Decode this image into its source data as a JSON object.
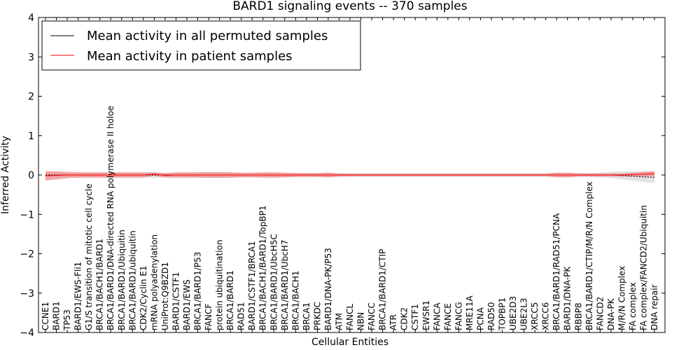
{
  "chart_data": {
    "type": "line",
    "title": "BARD1 signaling events -- 370 samples",
    "xlabel": "Cellular Entities",
    "ylabel": "Inferred Activity",
    "ylim": [
      -4,
      4
    ],
    "yticks": [
      "−4",
      "−3",
      "−2",
      "−1",
      "0",
      "1",
      "2",
      "3",
      "4"
    ],
    "grid": false,
    "legend_position": "top-left",
    "categories": [
      "CCNE1",
      "BARD1",
      "TP53",
      "BARD1/EWS-Fli1",
      "G1/S transition of mitotic cell cycle",
      "BRCA1/BACH1/BARD1",
      "BRCA1/BARD1/DNA-directed RNA polymerase II holoe",
      "BRCA1/BARD1/Ubiquitin",
      "BRCA1/BARD1/ubiquitin",
      "CDK2/Cyclin E1",
      "mRNA polyadenylation",
      "UniProt:Q9BZD1",
      "BARD1/CSTF1",
      "BARD1/EWS",
      "BRCA1/BARD1/P53",
      "FANCF",
      "protein ubiquitination",
      "BRCA1/BARD1",
      "RAD51",
      "BARD1/CSTF1/BRCA1",
      "BRCA1/BACH1/BARD1/TopBP1",
      "BRCA1/BARD1/UbcH5C",
      "BRCA1/BARD1/UbcH7",
      "BRCA1/BACH1",
      "BRCA1",
      "PRKDC",
      "BARD1/DNA-PK/P53",
      "ATM",
      "FANCL",
      "NBN",
      "FANCC",
      "BRCA1/BARD1/CTIP",
      "ATR",
      "CDK2",
      "CSTF1",
      "EWSR1",
      "FANCA",
      "FANCE",
      "FANCG",
      "MRE11A",
      "PCNA",
      "RAD50",
      "TOPBP1",
      "UBE2D3",
      "UBE2L3",
      "XRCC5",
      "XRCC6",
      "BRCA1/BARD1/RAD51/PCNA",
      "BARD1/DNA-PK",
      "RBBP8",
      "BRCA1/BARD1/CTIP/M/R/N Complex",
      "FANCD2",
      "DNA-PK",
      "M/R/N Complex",
      "FA complex",
      "FA complex/FANCD2/Ubiquitin",
      "DNA repair"
    ],
    "series": [
      {
        "name": "Mean activity in all permuted samples",
        "color": "#000000",
        "band_color": "#d9d9d9",
        "values": [
          0,
          0,
          0,
          0,
          0,
          0,
          0,
          0,
          0,
          0,
          0,
          0,
          0,
          0,
          0,
          0,
          0,
          0,
          0,
          0,
          0,
          0,
          0,
          0,
          0,
          0,
          0,
          0,
          0,
          0,
          0,
          0,
          0,
          0,
          0,
          0,
          0,
          0,
          0,
          0,
          0,
          0,
          0,
          0,
          0,
          0,
          0,
          0,
          0,
          0,
          0,
          0,
          0,
          -0.01,
          -0.03,
          -0.05,
          -0.06
        ],
        "band_halfwidth": [
          0.05,
          0.05,
          0.05,
          0.05,
          0.05,
          0.05,
          0.05,
          0.05,
          0.05,
          0.05,
          0.08,
          0.05,
          0.05,
          0.05,
          0.06,
          0.07,
          0.08,
          0.06,
          0.05,
          0.05,
          0.05,
          0.05,
          0.05,
          0.05,
          0.05,
          0.05,
          0.05,
          0.05,
          0.05,
          0.05,
          0.05,
          0.05,
          0.05,
          0.05,
          0.05,
          0.05,
          0.05,
          0.05,
          0.05,
          0.05,
          0.05,
          0.05,
          0.05,
          0.05,
          0.05,
          0.05,
          0.05,
          0.05,
          0.05,
          0.05,
          0.05,
          0.06,
          0.08,
          0.1,
          0.12,
          0.13,
          0.14
        ]
      },
      {
        "name": "Mean activity in patient samples",
        "color": "#ff0000",
        "band_color": "#f08080",
        "values": [
          -0.02,
          -0.01,
          0,
          0,
          0,
          0,
          0,
          0,
          0,
          0,
          0.02,
          -0.01,
          0,
          0,
          0,
          0,
          0,
          0,
          0,
          0,
          0,
          0,
          0,
          0,
          0,
          0,
          0,
          0,
          0,
          0,
          0,
          0,
          0,
          0,
          0,
          0,
          0,
          0,
          0,
          0,
          0,
          0,
          0,
          0,
          0,
          0,
          0,
          0,
          0,
          0,
          0,
          0,
          0,
          0,
          0.01,
          0.02,
          0.03
        ],
        "band_halfwidth": [
          0.12,
          0.1,
          0.08,
          0.07,
          0.07,
          0.07,
          0.07,
          0.07,
          0.07,
          0.07,
          0.04,
          0.06,
          0.07,
          0.07,
          0.07,
          0.07,
          0.07,
          0.07,
          0.06,
          0.06,
          0.07,
          0.07,
          0.06,
          0.05,
          0.05,
          0.05,
          0.06,
          0.04,
          0.03,
          0.03,
          0.03,
          0.03,
          0.03,
          0.03,
          0.03,
          0.03,
          0.03,
          0.03,
          0.03,
          0.03,
          0.03,
          0.03,
          0.03,
          0.03,
          0.03,
          0.03,
          0.03,
          0.06,
          0.06,
          0.04,
          0.04,
          0.04,
          0.04,
          0.04,
          0.05,
          0.06,
          0.07
        ]
      }
    ]
  }
}
